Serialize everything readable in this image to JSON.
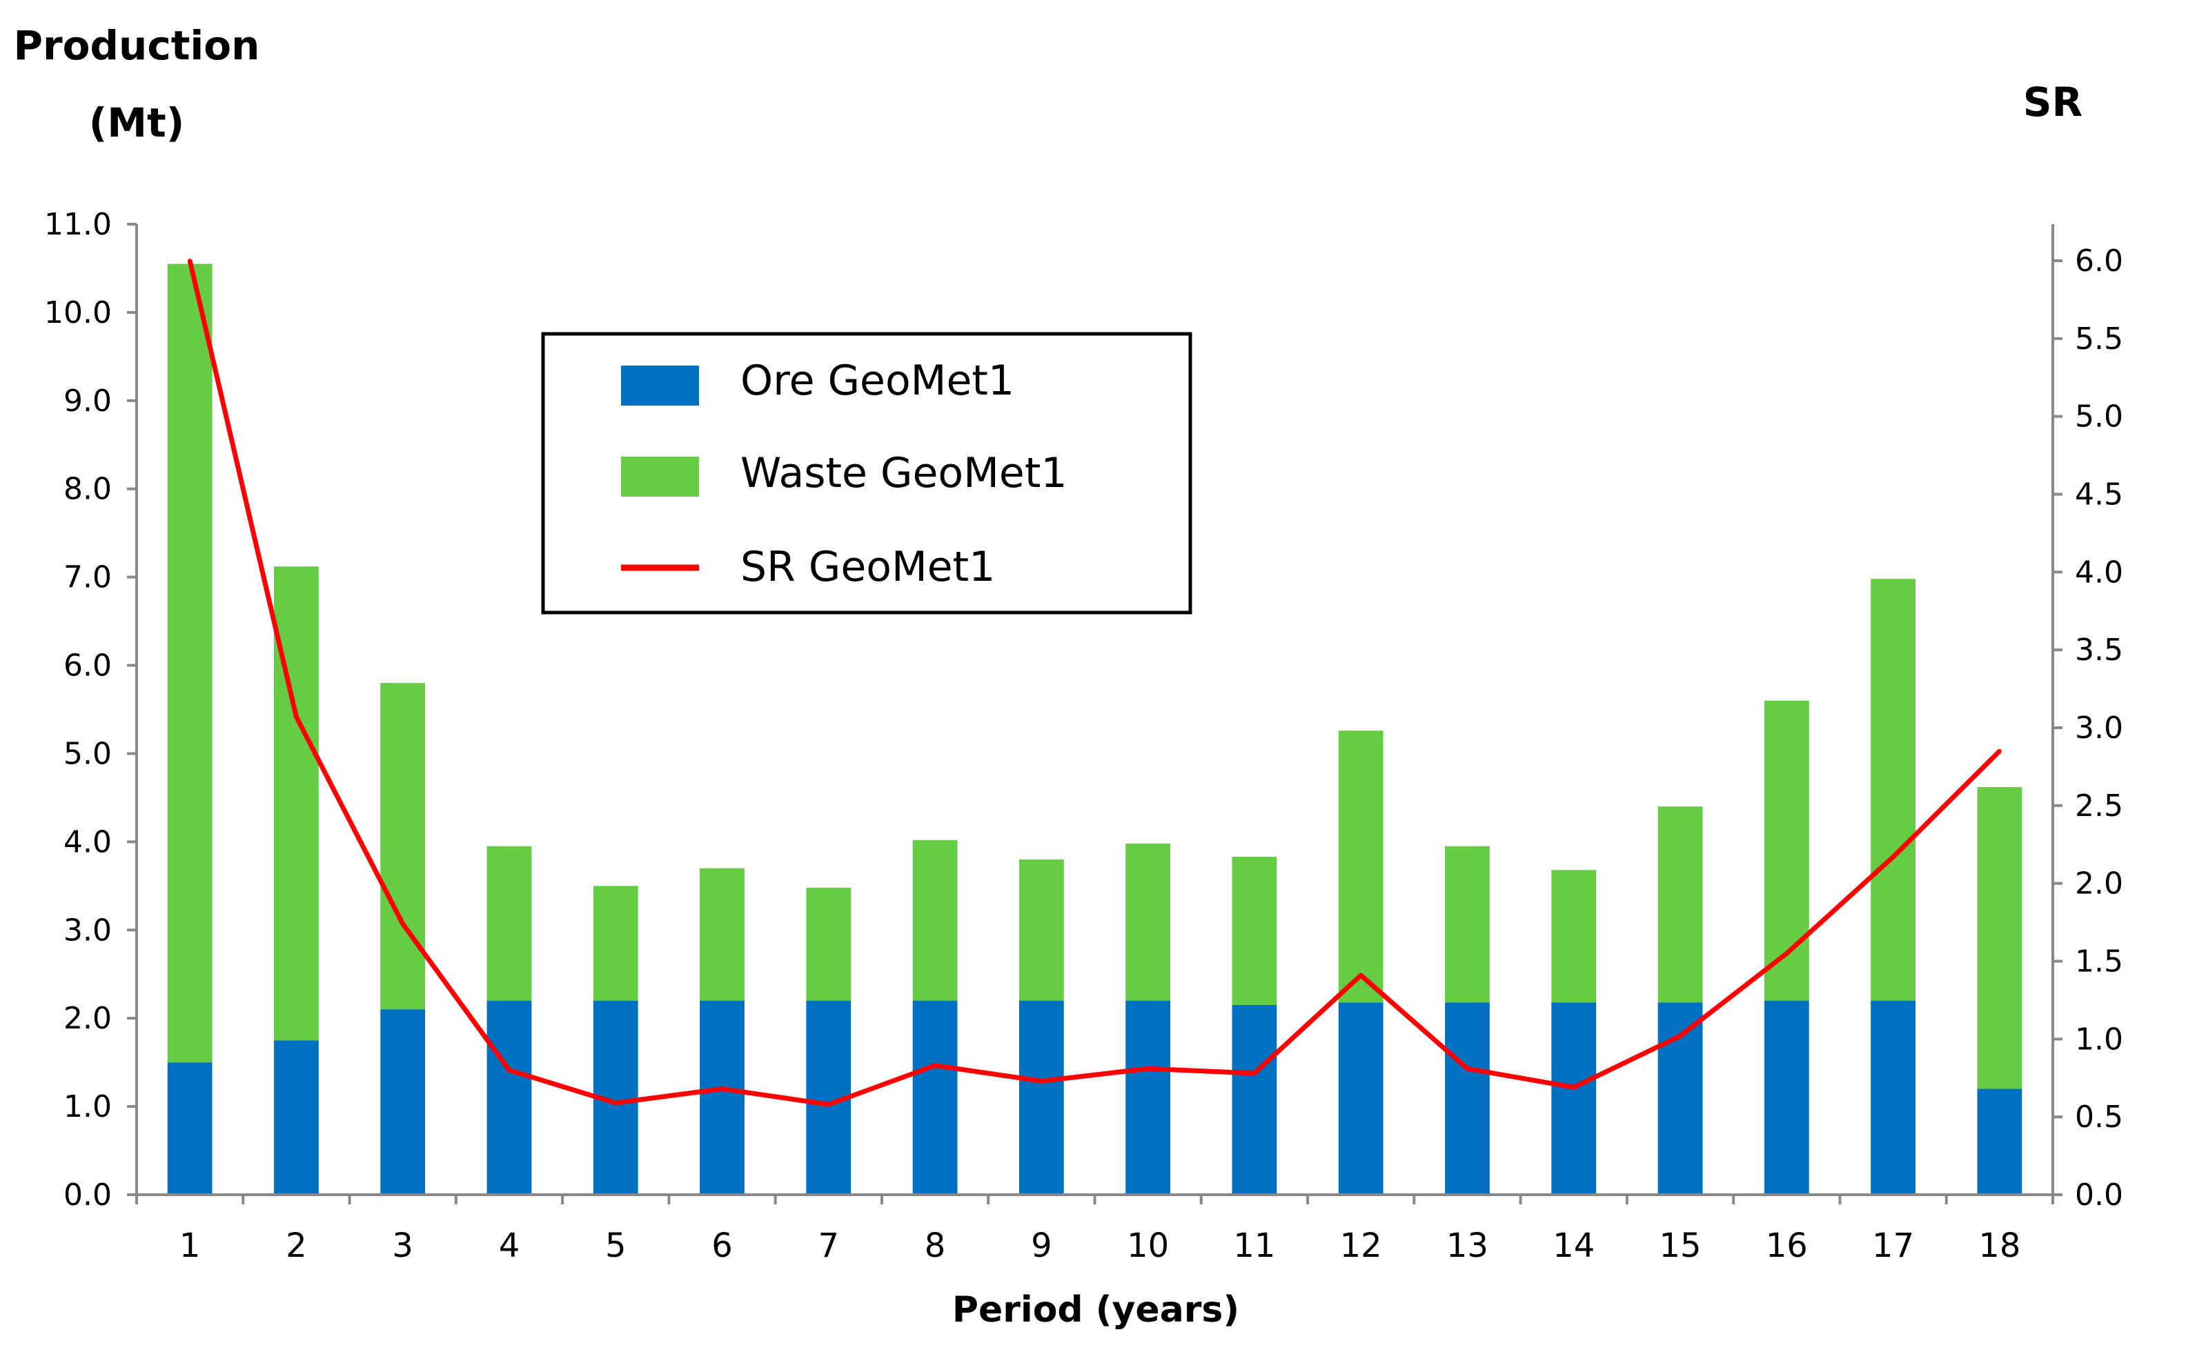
{
  "chart_data": {
    "type": "bar",
    "stacked": true,
    "y_label_line1": "Production",
    "y_label_line2": "(Mt)",
    "y2_label": "SR",
    "xlabel": "Period (years)",
    "categories": [
      "1",
      "2",
      "3",
      "4",
      "5",
      "6",
      "7",
      "8",
      "9",
      "10",
      "11",
      "12",
      "13",
      "14",
      "15",
      "16",
      "17",
      "18"
    ],
    "ylim": [
      0,
      11
    ],
    "y_ticks": [
      "0.0",
      "1.0",
      "2.0",
      "3.0",
      "4.0",
      "5.0",
      "6.0",
      "7.0",
      "8.0",
      "9.0",
      "10.0",
      "11.0"
    ],
    "y2lim": [
      0,
      6
    ],
    "y2_ticks": [
      "0.0",
      "0.5",
      "1.0",
      "1.5",
      "2.0",
      "2.5",
      "3.0",
      "3.5",
      "4.0",
      "4.5",
      "5.0",
      "5.5",
      "6.0"
    ],
    "series": [
      {
        "name": "Ore GeoMet1",
        "kind": "bar",
        "color": "#0070C0",
        "values": [
          1.5,
          1.75,
          2.1,
          2.2,
          2.2,
          2.2,
          2.2,
          2.2,
          2.2,
          2.2,
          2.15,
          2.18,
          2.18,
          2.18,
          2.18,
          2.2,
          2.2,
          1.2
        ]
      },
      {
        "name": "Waste GeoMet1",
        "kind": "bar",
        "color": "#66CC44",
        "values": [
          9.05,
          5.37,
          3.7,
          1.75,
          1.3,
          1.5,
          1.28,
          1.82,
          1.6,
          1.78,
          1.68,
          3.08,
          1.77,
          1.5,
          2.22,
          3.4,
          4.78,
          3.42
        ]
      },
      {
        "name": "SR GeoMet1",
        "kind": "line",
        "axis": "right",
        "color": "#FF0000",
        "values": [
          6.0,
          3.07,
          1.74,
          0.8,
          0.59,
          0.68,
          0.58,
          0.83,
          0.73,
          0.81,
          0.78,
          1.41,
          0.81,
          0.69,
          1.02,
          1.55,
          2.17,
          2.85
        ]
      }
    ],
    "legend_position": "top-center"
  }
}
